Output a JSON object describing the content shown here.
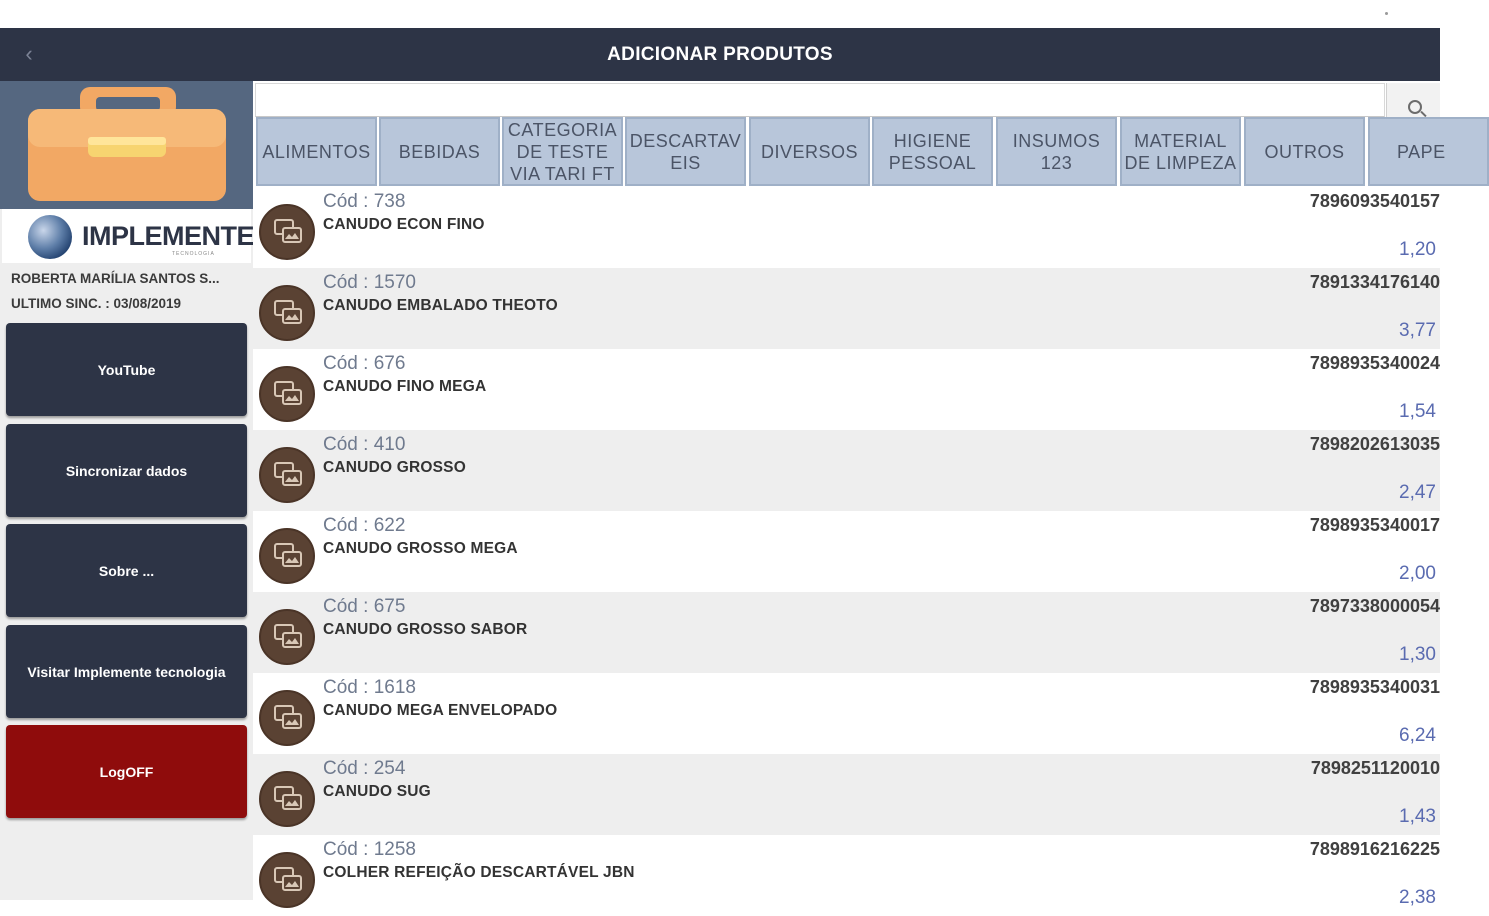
{
  "header": {
    "title": "ADICIONAR PRODUTOS",
    "back_icon": "chevron-left-icon"
  },
  "sidebar": {
    "hero_icon": "briefcase-icon",
    "brand": "IMPLEMENTE",
    "brand_sub": "TECNOLOGIA",
    "user_name": "ROBERTA MARÍLIA SANTOS S...",
    "last_sync": "ULTIMO SINC. : 03/08/2019",
    "buttons": [
      {
        "label": "YouTube"
      },
      {
        "label": "Sincronizar dados"
      },
      {
        "label": "Sobre ..."
      },
      {
        "label": "Visitar Implemente tecnologia"
      },
      {
        "label": "LogOFF"
      }
    ],
    "colors": {
      "button": "#2d3446",
      "logoff": "#8f0c0c",
      "hero": "#556780"
    }
  },
  "search": {
    "placeholder": "",
    "value": "",
    "icon": "search-icon"
  },
  "tabs": [
    {
      "label": "ALIMENTOS"
    },
    {
      "label": "BEBIDAS"
    },
    {
      "label": "CATEGORIA DE TESTE VIA TARI FT"
    },
    {
      "label": "DESCARTAV EIS"
    },
    {
      "label": "DIVERSOS"
    },
    {
      "label": "HIGIENE PESSOAL"
    },
    {
      "label": "INSUMOS 123"
    },
    {
      "label": "MATERIAL DE LIMPEZA"
    },
    {
      "label": "OUTROS"
    },
    {
      "label": "PAPE"
    }
  ],
  "products": [
    {
      "code": "Cód : 738",
      "name": "CANUDO ECON FINO",
      "barcode": "7896093540157",
      "price": "1,20"
    },
    {
      "code": "Cód : 1570",
      "name": "CANUDO EMBALADO THEOTO",
      "barcode": "7891334176140",
      "price": "3,77"
    },
    {
      "code": "Cód : 676",
      "name": "CANUDO FINO MEGA",
      "barcode": "7898935340024",
      "price": "1,54"
    },
    {
      "code": "Cód : 410",
      "name": "CANUDO GROSSO",
      "barcode": "7898202613035",
      "price": "2,47"
    },
    {
      "code": "Cód : 622",
      "name": "CANUDO GROSSO MEGA",
      "barcode": "7898935340017",
      "price": "2,00"
    },
    {
      "code": "Cód : 675",
      "name": "CANUDO GROSSO SABOR",
      "barcode": "7897338000054",
      "price": "1,30"
    },
    {
      "code": "Cód : 1618",
      "name": "CANUDO MEGA ENVELOPADO",
      "barcode": "7898935340031",
      "price": "6,24"
    },
    {
      "code": "Cód : 254",
      "name": "CANUDO SUG",
      "barcode": "7898251120010",
      "price": "1,43"
    },
    {
      "code": "Cód : 1258",
      "name": "COLHER REFEIÇÃO DESCARTÁVEL JBN",
      "barcode": "7898916216225",
      "price": "2,38"
    }
  ]
}
